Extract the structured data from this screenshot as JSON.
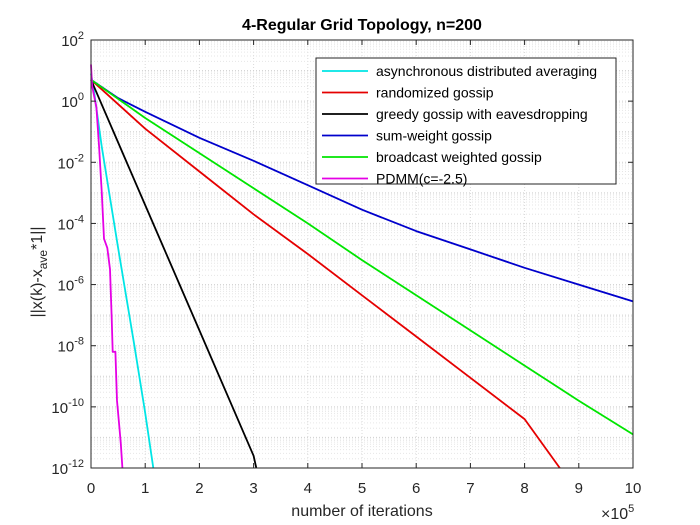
{
  "chart_data": {
    "type": "line",
    "title": "4-Regular Grid Topology, n=200",
    "xlabel": "number of iterations",
    "x_exponent": {
      "base": "×10",
      "power": "5"
    },
    "ylabel": {
      "main": "||x(k)-x",
      "sub": "ave",
      "rest": "*1||"
    },
    "xlim": [
      0,
      10
    ],
    "ylim_log10": [
      -12,
      2
    ],
    "y_scale": "log",
    "grid": true,
    "legend_position": "top-right",
    "x_ticks": [
      "0",
      "1",
      "2",
      "3",
      "4",
      "5",
      "6",
      "7",
      "8",
      "9",
      "10"
    ],
    "y_ticks": [
      {
        "base": "10",
        "exp": "2"
      },
      {
        "base": "10",
        "exp": "0"
      },
      {
        "base": "10",
        "exp": "-2"
      },
      {
        "base": "10",
        "exp": "-4"
      },
      {
        "base": "10",
        "exp": "-6"
      },
      {
        "base": "10",
        "exp": "-8"
      },
      {
        "base": "10",
        "exp": "-10"
      },
      {
        "base": "10",
        "exp": "-12"
      }
    ],
    "series": [
      {
        "name": "asynchronous distributed averaging",
        "color": "#00e5e5",
        "points": [
          [
            0,
            0.9
          ],
          [
            0.05,
            0.4
          ],
          [
            0.2,
            -1.5
          ],
          [
            0.5,
            -4.8
          ],
          [
            0.8,
            -8.0
          ],
          [
            1.0,
            -10.2
          ],
          [
            1.15,
            -12.0
          ]
        ]
      },
      {
        "name": "randomized gossip",
        "color": "#e50000",
        "points": [
          [
            0,
            0.7
          ],
          [
            1,
            -0.9
          ],
          [
            2,
            -2.3
          ],
          [
            3,
            -3.7
          ],
          [
            4,
            -5.0
          ],
          [
            5,
            -6.35
          ],
          [
            6,
            -7.7
          ],
          [
            7,
            -9.05
          ],
          [
            8,
            -10.4
          ],
          [
            8.65,
            -12.0
          ]
        ]
      },
      {
        "name": "greedy gossip with eavesdropping",
        "color": "#000000",
        "points": [
          [
            0,
            0.7
          ],
          [
            1,
            -3.4
          ],
          [
            2,
            -7.5
          ],
          [
            3,
            -11.6
          ],
          [
            3.05,
            -12.0
          ]
        ]
      },
      {
        "name": "sum-weight gossip",
        "color": "#0000cc",
        "points": [
          [
            0,
            0.7
          ],
          [
            0.5,
            0.1
          ],
          [
            1,
            -0.35
          ],
          [
            2,
            -1.2
          ],
          [
            3,
            -1.95
          ],
          [
            4,
            -2.75
          ],
          [
            5,
            -3.55
          ],
          [
            6,
            -4.25
          ],
          [
            7,
            -4.85
          ],
          [
            8,
            -5.45
          ],
          [
            9,
            -6.0
          ],
          [
            10,
            -6.55
          ]
        ]
      },
      {
        "name": "broadcast weighted gossip",
        "color": "#00e500",
        "points": [
          [
            0,
            0.7
          ],
          [
            1,
            -0.55
          ],
          [
            2,
            -1.7
          ],
          [
            3,
            -2.85
          ],
          [
            4,
            -4.0
          ],
          [
            5,
            -5.2
          ],
          [
            6,
            -6.35
          ],
          [
            7,
            -7.5
          ],
          [
            8,
            -8.65
          ],
          [
            9,
            -9.8
          ],
          [
            10,
            -10.9
          ]
        ]
      },
      {
        "name": "PDMM(c=-2.5)",
        "color": "#e500e5",
        "points": [
          [
            0,
            1.2
          ],
          [
            0.02,
            0.5
          ],
          [
            0.1,
            -0.2
          ],
          [
            0.15,
            -1.5
          ],
          [
            0.2,
            -3.0
          ],
          [
            0.24,
            -4.5
          ],
          [
            0.3,
            -4.8
          ],
          [
            0.35,
            -5.5
          ],
          [
            0.38,
            -7.0
          ],
          [
            0.4,
            -8.2
          ],
          [
            0.45,
            -8.2
          ],
          [
            0.48,
            -9.8
          ],
          [
            0.52,
            -10.6
          ],
          [
            0.55,
            -11.2
          ],
          [
            0.58,
            -12.0
          ]
        ]
      }
    ]
  }
}
